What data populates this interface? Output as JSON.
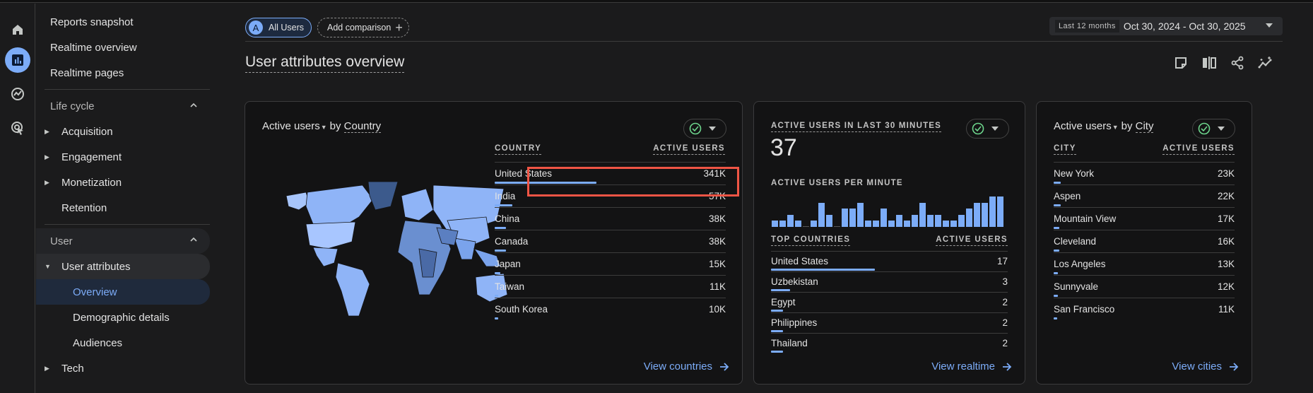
{
  "rail": {
    "items": [
      {
        "icon": "home-icon",
        "label": "Home"
      },
      {
        "icon": "reports-icon",
        "label": "Reports",
        "active": true
      },
      {
        "icon": "explore-icon",
        "label": "Explore"
      },
      {
        "icon": "advertising-icon",
        "label": "Advertising"
      }
    ]
  },
  "nav": {
    "top_items": [
      "Reports snapshot",
      "Realtime overview",
      "Realtime pages"
    ],
    "lifecycle": {
      "label": "Life cycle",
      "items": [
        "Acquisition",
        "Engagement",
        "Monetization",
        "Retention"
      ]
    },
    "user": {
      "label": "User",
      "group": "User attributes",
      "sub_items": [
        "Overview",
        "Demographic details",
        "Audiences"
      ],
      "selected": "Overview",
      "tech": "Tech"
    }
  },
  "header": {
    "segment_chip": {
      "avatar": "A",
      "label": "All Users"
    },
    "add_comparison": "Add comparison",
    "date_tag": "Last 12 months",
    "date_range": "Oct 30, 2024 - Oct 30, 2025",
    "page_title": "User attributes overview",
    "actions": [
      "note-icon",
      "compare-icon",
      "share-icon",
      "insights-icon"
    ]
  },
  "country_card": {
    "metric": "Active users",
    "by": "by",
    "dimension": "Country",
    "col_left": "COUNTRY",
    "col_right": "ACTIVE USERS",
    "rows": [
      {
        "name": "United States",
        "value": "341K",
        "pct": 57
      },
      {
        "name": "India",
        "value": "57K",
        "pct": 10
      },
      {
        "name": "China",
        "value": "38K",
        "pct": 7
      },
      {
        "name": "Canada",
        "value": "38K",
        "pct": 7
      },
      {
        "name": "Japan",
        "value": "15K",
        "pct": 3
      },
      {
        "name": "Taiwan",
        "value": "11K",
        "pct": 2
      },
      {
        "name": "South Korea",
        "value": "10K",
        "pct": 2
      }
    ],
    "link": "View countries",
    "highlighted_row": "United States"
  },
  "realtime_card": {
    "title": "ACTIVE USERS IN LAST 30 MINUTES",
    "value": "37",
    "per_minute_label": "ACTIVE USERS PER MINUTE",
    "per_minute": [
      1,
      1,
      2,
      1,
      0,
      1,
      4,
      2,
      0,
      3,
      3,
      4,
      1,
      1,
      3,
      1,
      2,
      1,
      2,
      4,
      2,
      2,
      1,
      1,
      2,
      3,
      4,
      4,
      5,
      5
    ],
    "col_left": "TOP COUNTRIES",
    "col_right": "ACTIVE USERS",
    "rows": [
      {
        "name": "United States",
        "value": "17",
        "pct": 100
      },
      {
        "name": "Uzbekistan",
        "value": "3",
        "pct": 18
      },
      {
        "name": "Egypt",
        "value": "2",
        "pct": 12
      },
      {
        "name": "Philippines",
        "value": "2",
        "pct": 12
      },
      {
        "name": "Thailand",
        "value": "2",
        "pct": 12
      }
    ],
    "link": "View realtime"
  },
  "city_card": {
    "metric": "Active users",
    "by": "by",
    "dimension": "City",
    "col_left": "CITY",
    "col_right": "ACTIVE USERS",
    "rows": [
      {
        "name": "New York",
        "value": "23K",
        "pct": 4
      },
      {
        "name": "Aspen",
        "value": "22K",
        "pct": 4
      },
      {
        "name": "Mountain View",
        "value": "17K",
        "pct": 3
      },
      {
        "name": "Cleveland",
        "value": "16K",
        "pct": 3
      },
      {
        "name": "Los Angeles",
        "value": "13K",
        "pct": 3
      },
      {
        "name": "Sunnyvale",
        "value": "12K",
        "pct": 2
      },
      {
        "name": "San Francisco",
        "value": "11K",
        "pct": 2
      }
    ],
    "link": "View cities"
  },
  "colors": {
    "accent": "#7cacf8",
    "highlight": "#f05545",
    "status_ok": "#6dd58c",
    "card_bg": "#131314",
    "page_bg": "#1b1b1c"
  }
}
